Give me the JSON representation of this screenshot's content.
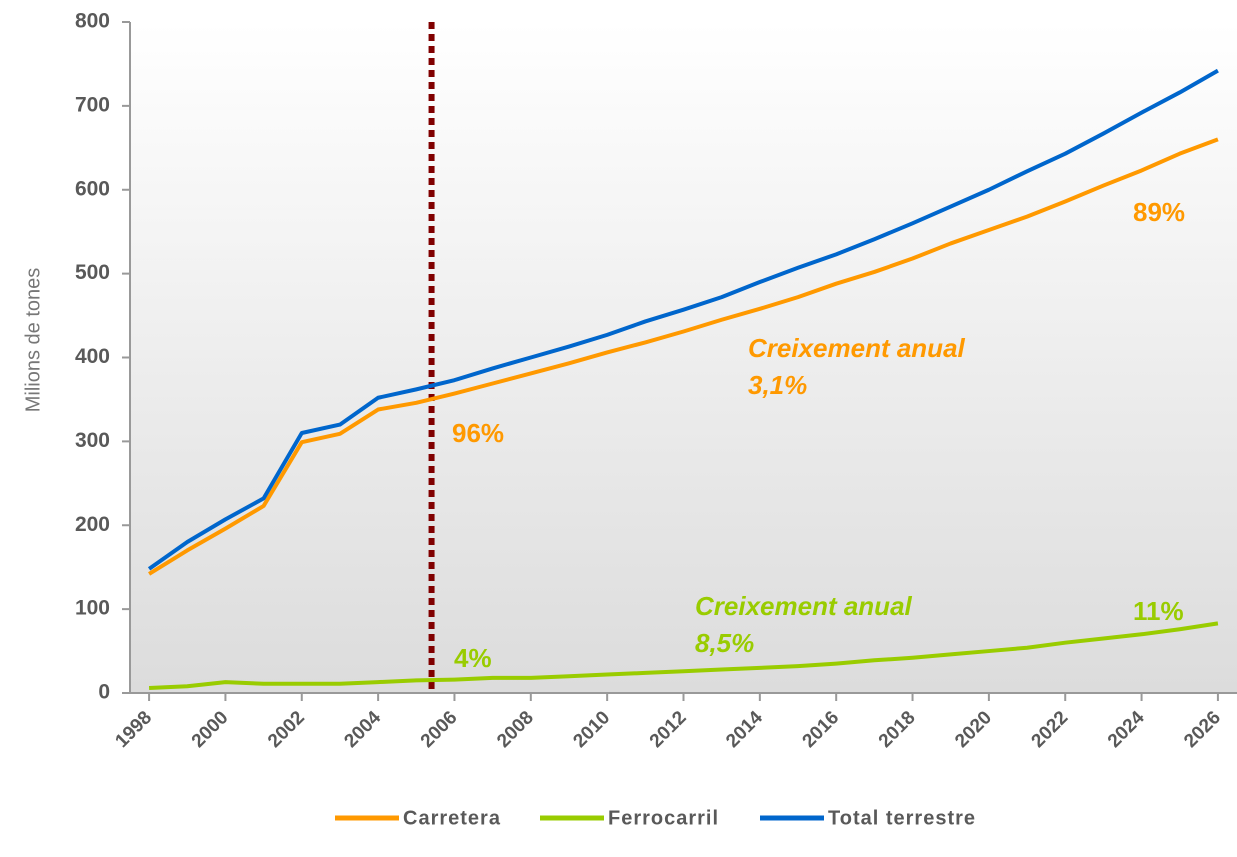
{
  "chart_data": {
    "type": "line",
    "y_label": "Milions de tones",
    "x": [
      1998,
      1999,
      2000,
      2001,
      2002,
      2003,
      2004,
      2005,
      2006,
      2007,
      2008,
      2009,
      2010,
      2011,
      2012,
      2013,
      2014,
      2015,
      2016,
      2017,
      2018,
      2019,
      2020,
      2021,
      2022,
      2023,
      2024,
      2025,
      2026
    ],
    "series": [
      {
        "name": "Carretera",
        "color": "#ff9900",
        "values": [
          142,
          170,
          196,
          223,
          299,
          309,
          338,
          346,
          357,
          369,
          381,
          393,
          406,
          418,
          431,
          445,
          458,
          472,
          488,
          502,
          518,
          536,
          552,
          568,
          586,
          605,
          623,
          643,
          660
        ]
      },
      {
        "name": "Ferrocarril",
        "color": "#99cc00",
        "values": [
          6,
          8,
          13,
          11,
          11,
          11,
          13,
          15,
          16,
          18,
          18,
          20,
          22,
          24,
          26,
          28,
          30,
          32,
          35,
          39,
          42,
          46,
          50,
          54,
          60,
          65,
          70,
          76,
          83
        ]
      },
      {
        "name": "Total terrestre",
        "color": "#0066cc",
        "values": [
          148,
          180,
          207,
          232,
          310,
          320,
          352,
          362,
          373,
          387,
          400,
          413,
          427,
          443,
          457,
          472,
          490,
          507,
          523,
          541,
          560,
          580,
          600,
          622,
          643,
          667,
          692,
          716,
          742
        ]
      }
    ],
    "xlim": [
      1997.5,
      2026.5
    ],
    "xticks": [
      1998,
      2000,
      2002,
      2004,
      2006,
      2008,
      2010,
      2012,
      2014,
      2016,
      2018,
      2020,
      2022,
      2024,
      2026
    ],
    "ylim": [
      0,
      800
    ],
    "yticks": [
      0,
      100,
      200,
      300,
      400,
      500,
      600,
      700,
      800
    ],
    "reference_line_x": 2005.4,
    "reference_line_color": "#800000",
    "annotations": [
      {
        "text": "Creixement anual",
        "color": "#ff9900"
      },
      {
        "text": "3,1%",
        "color": "#ff9900"
      },
      {
        "text": "96%",
        "color": "#ff9900"
      },
      {
        "text": "89%",
        "color": "#ff9900"
      },
      {
        "text": "Creixement anual",
        "color": "#99cc00"
      },
      {
        "text": "8,5%",
        "color": "#99cc00"
      },
      {
        "text": "4%",
        "color": "#99cc00"
      },
      {
        "text": "11%",
        "color": "#99cc00"
      }
    ]
  }
}
